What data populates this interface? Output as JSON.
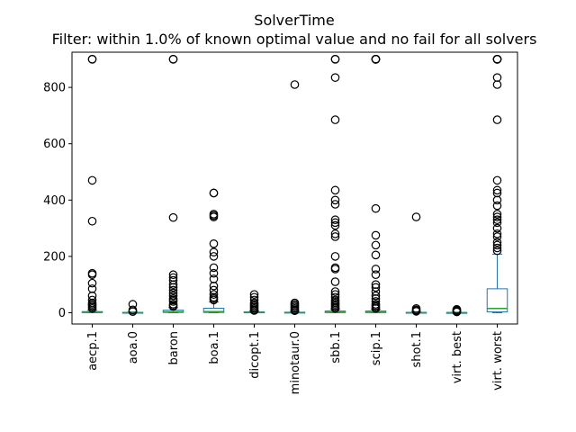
{
  "chart_data": {
    "type": "boxplot",
    "title": "SolverTime",
    "subtitle": "Filter: within 1.0% of known optimal value and no fail for all solvers",
    "xlabel": "",
    "ylabel": "",
    "ylim": [
      -40,
      925
    ],
    "yticks": [
      0,
      200,
      400,
      600,
      800
    ],
    "grid": false,
    "legend": "none",
    "colors": {
      "box": "#1f77b4",
      "median": "#2ca02c",
      "outlier": "#000000",
      "axis": "#000000"
    },
    "categories": [
      "aecp.1",
      "aoa.0",
      "baron",
      "boa.1",
      "dicopt.1",
      "minotaur.0",
      "sbb.1",
      "scip.1",
      "shot.1",
      "virt. best",
      "virt. worst"
    ],
    "boxes": [
      {
        "q1": 0.5,
        "median": 1.5,
        "q3": 4,
        "whisker_low": 0,
        "whisker_high": 9,
        "outliers": [
          900,
          900,
          470,
          325,
          140,
          135,
          105,
          85,
          60,
          45,
          35,
          30,
          25,
          20,
          15
        ]
      },
      {
        "q1": 0.2,
        "median": 0.6,
        "q3": 1.5,
        "whisker_low": 0,
        "whisker_high": 3,
        "outliers": [
          30,
          10,
          5,
          4
        ]
      },
      {
        "q1": 1,
        "median": 3,
        "q3": 9,
        "whisker_low": 0,
        "whisker_high": 18,
        "outliers": [
          900,
          900,
          338,
          135,
          125,
          115,
          100,
          90,
          80,
          70,
          60,
          50,
          45,
          40,
          30,
          25,
          22
        ]
      },
      {
        "q1": 1,
        "median": 4,
        "q3": 16,
        "whisker_low": 0,
        "whisker_high": 38,
        "outliers": [
          425,
          425,
          350,
          345,
          340,
          245,
          215,
          200,
          160,
          140,
          120,
          95,
          80,
          65,
          55,
          50,
          45
        ]
      },
      {
        "q1": 0.3,
        "median": 1,
        "q3": 3,
        "whisker_low": 0,
        "whisker_high": 6,
        "outliers": [
          65,
          55,
          45,
          35,
          30,
          25,
          20,
          15,
          10,
          8
        ]
      },
      {
        "q1": 0.2,
        "median": 0.8,
        "q3": 2,
        "whisker_low": 0,
        "whisker_high": 4,
        "outliers": [
          810,
          35,
          30,
          25,
          20,
          15,
          10,
          7
        ]
      },
      {
        "q1": 0.5,
        "median": 2,
        "q3": 6,
        "whisker_low": 0,
        "whisker_high": 12,
        "outliers": [
          900,
          900,
          835,
          685,
          435,
          400,
          385,
          330,
          320,
          310,
          280,
          270,
          200,
          160,
          155,
          110,
          75,
          65,
          55,
          45,
          40,
          35,
          30,
          25,
          20,
          15
        ]
      },
      {
        "q1": 0.5,
        "median": 2,
        "q3": 6,
        "whisker_low": 0,
        "whisker_high": 12,
        "outliers": [
          900,
          900,
          900,
          900,
          900,
          370,
          275,
          240,
          205,
          155,
          135,
          100,
          90,
          75,
          60,
          50,
          40,
          30,
          25,
          20,
          15
        ]
      },
      {
        "q1": 0.2,
        "median": 0.5,
        "q3": 1.5,
        "whisker_low": 0,
        "whisker_high": 3,
        "outliers": [
          340,
          15,
          10,
          7,
          5
        ]
      },
      {
        "q1": 0.1,
        "median": 0.3,
        "q3": 1,
        "whisker_low": 0,
        "whisker_high": 2,
        "outliers": [
          12,
          9,
          6,
          4,
          3
        ]
      },
      {
        "q1": 3,
        "median": 15,
        "q3": 85,
        "whisker_low": 0,
        "whisker_high": 208,
        "outliers": [
          900,
          900,
          900,
          900,
          900,
          835,
          810,
          685,
          470,
          435,
          425,
          400,
          380,
          350,
          340,
          330,
          320,
          300,
          280,
          270,
          250,
          240,
          230,
          220
        ]
      }
    ]
  }
}
